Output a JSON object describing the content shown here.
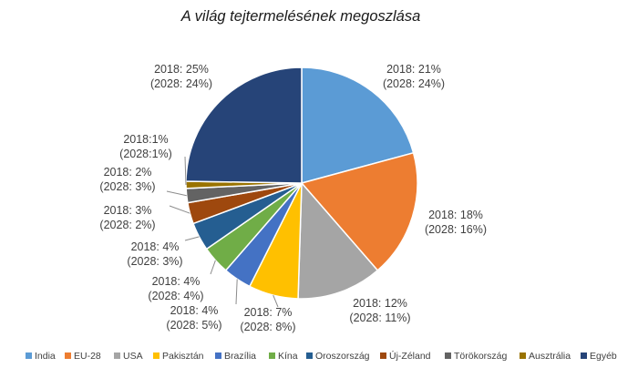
{
  "chart_data": {
    "type": "pie",
    "title": "A világ tejtermelésének megoszlása",
    "legend_position": "bottom",
    "slices": [
      {
        "name": "India",
        "value": 21,
        "value_2028": 24,
        "color": "#5b9bd5",
        "label": [
          "2018: 21%",
          "(2028: 24%)"
        ]
      },
      {
        "name": "EU-28",
        "value": 18,
        "value_2028": 16,
        "color": "#ed7d31",
        "label": [
          "2018: 18%",
          "(2028: 16%)"
        ]
      },
      {
        "name": "USA",
        "value": 12,
        "value_2028": 11,
        "color": "#a5a5a5",
        "label": [
          "2018: 12%",
          "(2028: 11%)"
        ]
      },
      {
        "name": "Pakisztán",
        "value": 7,
        "value_2028": 8,
        "color": "#ffc000",
        "label": [
          "2018: 7%",
          "(2028: 8%)"
        ]
      },
      {
        "name": "Brazília",
        "value": 4,
        "value_2028": 5,
        "color": "#4472c4",
        "label": [
          "2018: 4%",
          "(2028: 5%)"
        ]
      },
      {
        "name": "Kína",
        "value": 4,
        "value_2028": 4,
        "color": "#70ad47",
        "label": [
          "2018: 4%",
          "(2028: 4%)"
        ]
      },
      {
        "name": "Oroszország",
        "value": 4,
        "value_2028": 3,
        "color": "#255e91",
        "label": [
          "2018: 4%",
          "(2028: 3%)"
        ]
      },
      {
        "name": "Új-Zéland",
        "value": 3,
        "value_2028": 2,
        "color": "#9e480e",
        "label": [
          "2018: 3%",
          "(2028: 2%)"
        ]
      },
      {
        "name": "Törökország",
        "value": 2,
        "value_2028": 3,
        "color": "#636363",
        "label": [
          "2018: 2%",
          "(2028: 3%)"
        ]
      },
      {
        "name": "Ausztrália",
        "value": 1,
        "value_2028": 1,
        "color": "#997300",
        "label": [
          "2018:1%",
          "(2028:1%)"
        ]
      },
      {
        "name": "Egyéb",
        "value": 25,
        "value_2028": 24,
        "color": "#264478",
        "label": [
          "2018: 25%",
          "(2028: 24%)"
        ]
      }
    ]
  }
}
